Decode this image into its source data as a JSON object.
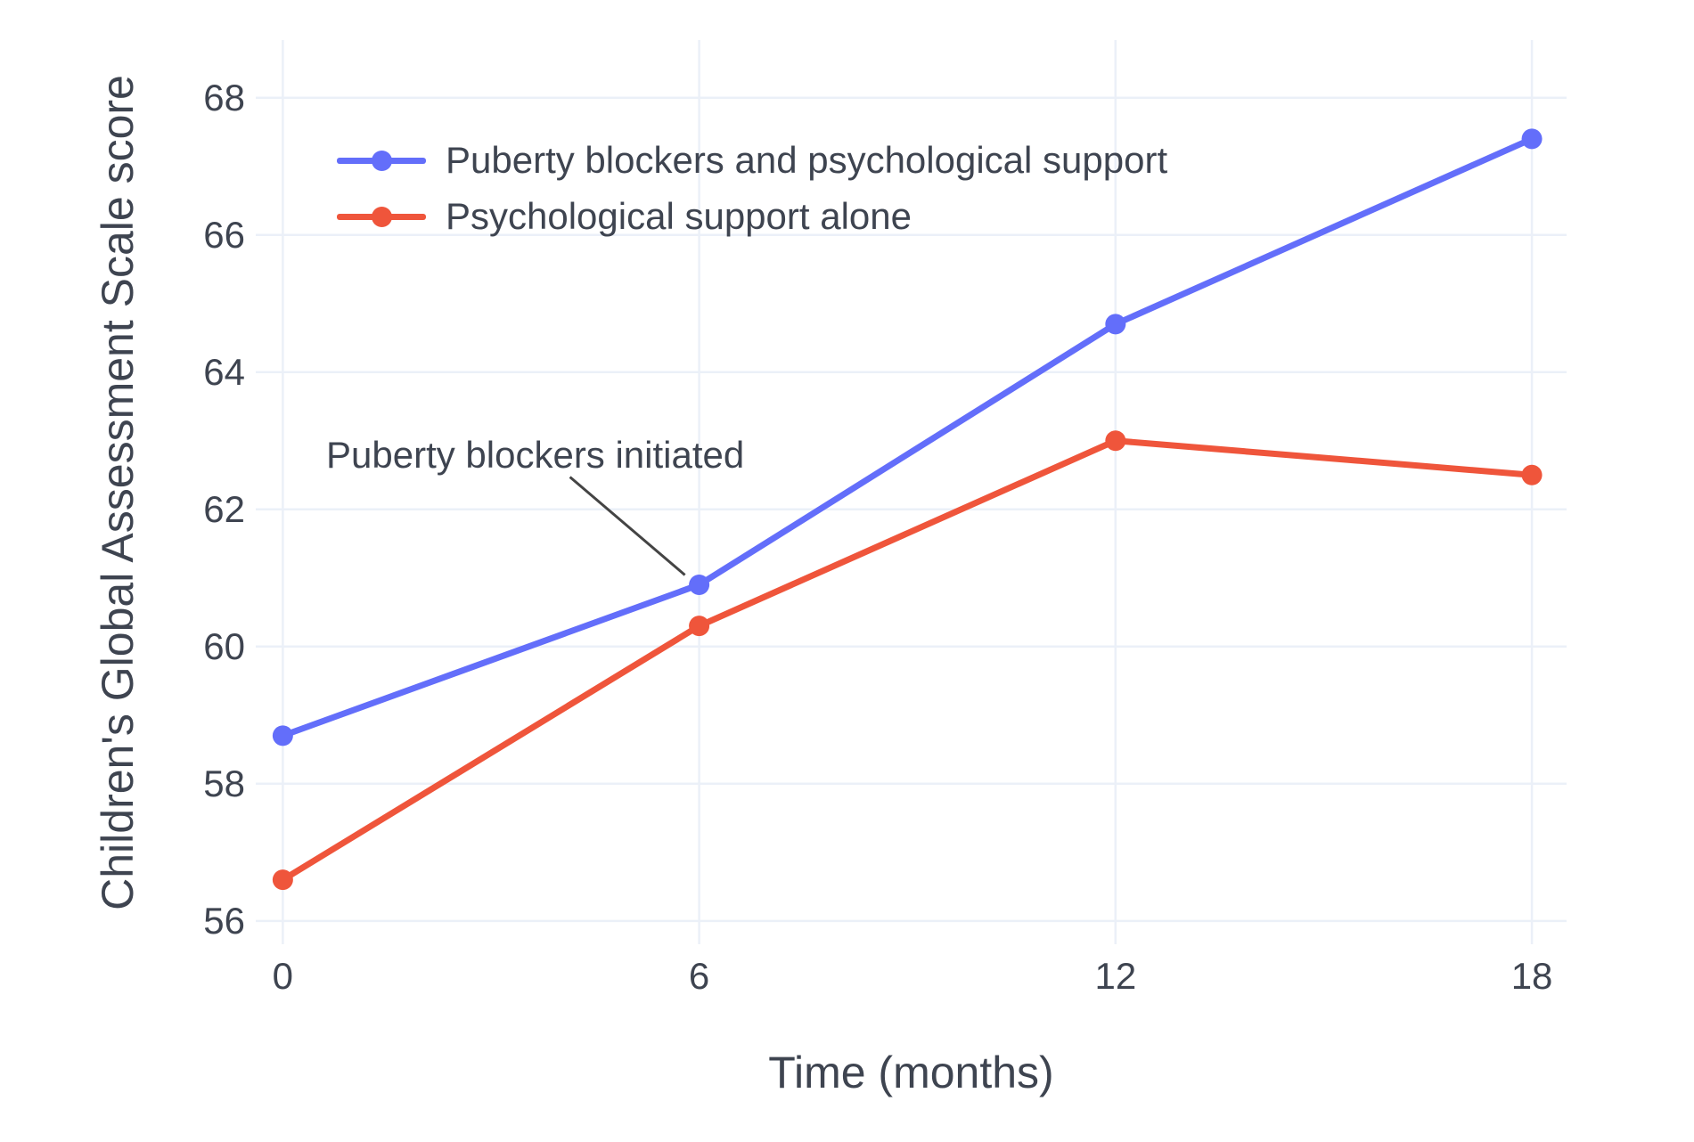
{
  "colors": {
    "background": "#FFFFFF",
    "grid": "#EBF0F8",
    "text": "#3E4450",
    "series_blue": "#636EFA",
    "series_red": "#EF553B",
    "annotation_arrow": "#444444"
  },
  "chart_data": {
    "type": "line",
    "title": "",
    "xlabel": "Time (months)",
    "ylabel": "Children's Global Assessment Scale score",
    "x": [
      0,
      6,
      12,
      18
    ],
    "xtick_labels": [
      "0",
      "6",
      "12",
      "18"
    ],
    "ytick_values": [
      56,
      58,
      60,
      62,
      64,
      66,
      68
    ],
    "ytick_labels": [
      "56",
      "58",
      "60",
      "62",
      "64",
      "66",
      "68"
    ],
    "xlim": [
      -0.39,
      18.5
    ],
    "ylim": [
      55.66,
      68.84
    ],
    "grid": true,
    "legend_position": "inside-top-left",
    "series": [
      {
        "name": "Puberty blockers and psychological support",
        "color": "#636EFA",
        "x": [
          0,
          6,
          12,
          18
        ],
        "values": [
          58.7,
          60.9,
          64.7,
          67.4
        ]
      },
      {
        "name": "Psychological support alone",
        "color": "#EF553B",
        "x": [
          0,
          6,
          12,
          18
        ],
        "values": [
          56.6,
          60.3,
          63.0,
          62.5
        ]
      }
    ],
    "annotation": {
      "text": "Puberty blockers initiated",
      "target_series": "Puberty blockers and psychological support",
      "target_x": 6,
      "target_y": 60.9
    }
  }
}
